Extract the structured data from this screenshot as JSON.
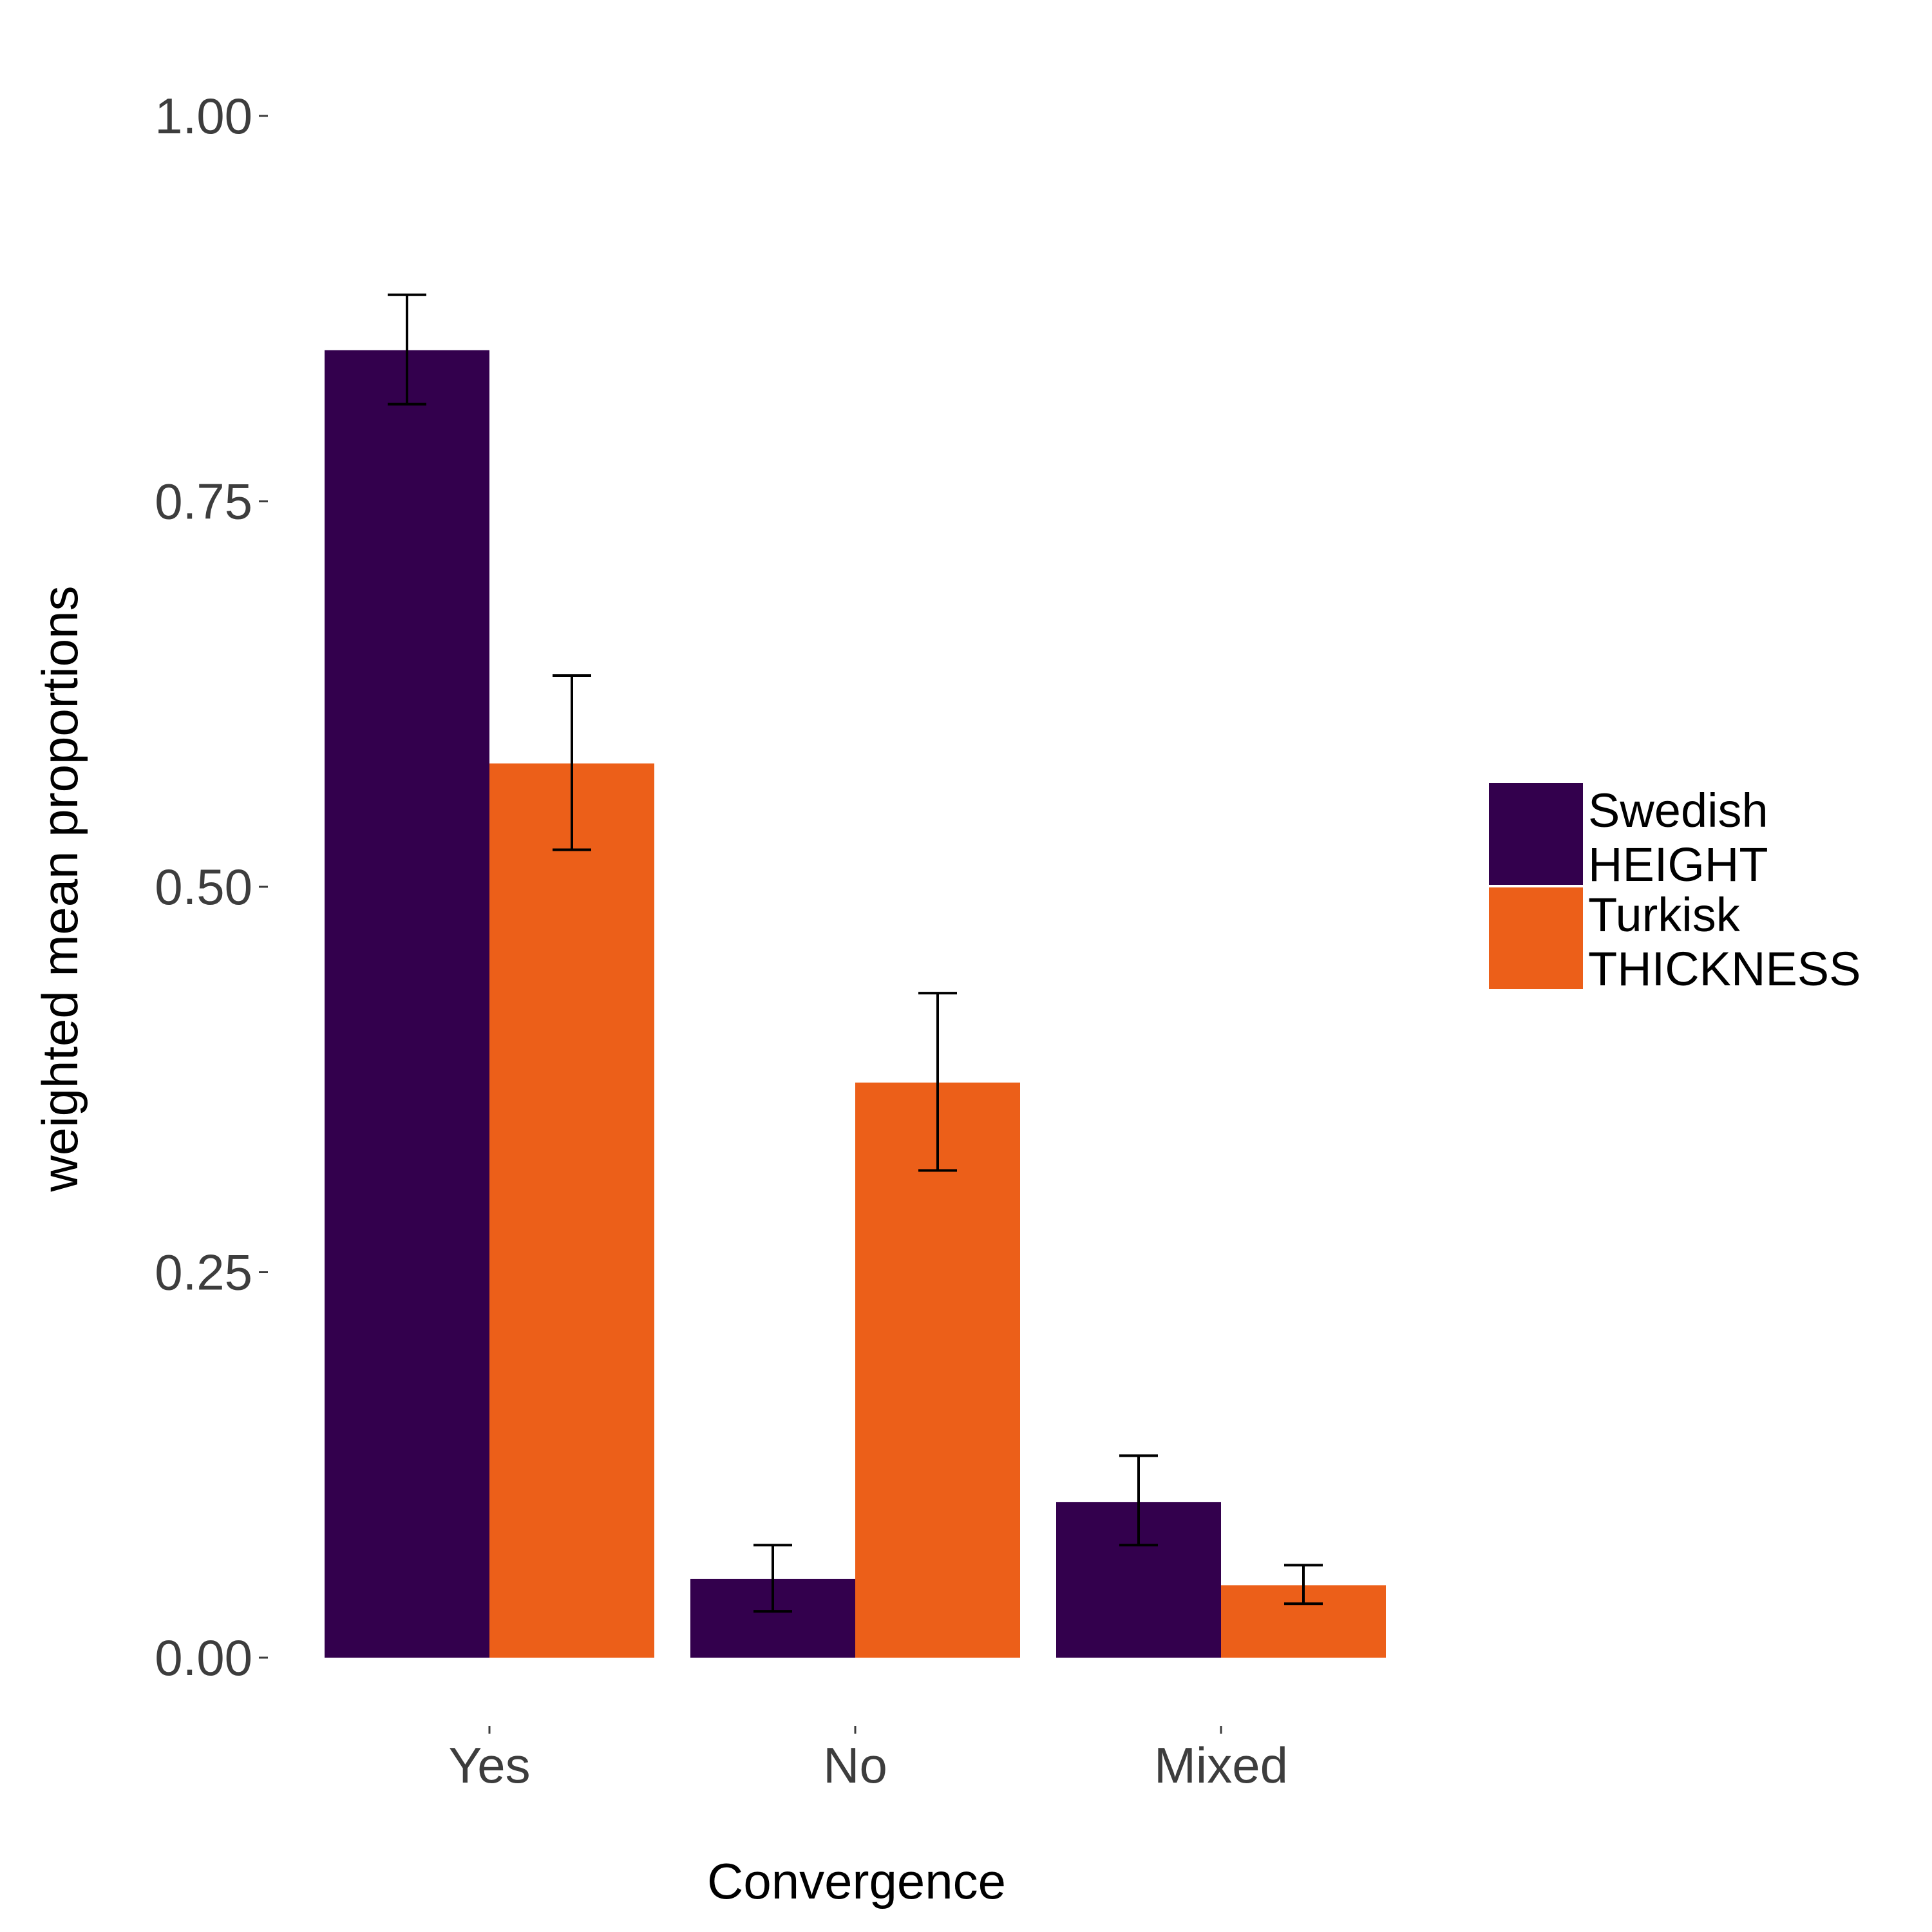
{
  "chart_data": {
    "type": "bar",
    "title": "",
    "xlabel": "Convergence",
    "ylabel": "weighted mean proportions",
    "categories": [
      "Yes",
      "No",
      "Mixed"
    ],
    "ylim": [
      0,
      1
    ],
    "yticks": [
      0,
      0.25,
      0.5,
      0.75,
      1
    ],
    "ytick_labels": [
      "0.00",
      "0.25",
      "0.50",
      "0.75",
      "1.00"
    ],
    "grid": false,
    "legend_position": "right",
    "series": [
      {
        "name": "Swedish HEIGHT",
        "legend_lines": [
          "Swedish",
          "HEIGHT"
        ],
        "color": "#33004d",
        "values": [
          0.848,
          0.051,
          0.101
        ],
        "error_low": [
          0.813,
          0.03,
          0.073
        ],
        "error_high": [
          0.884,
          0.073,
          0.131
        ]
      },
      {
        "name": "Turkisk THICKNESS",
        "legend_lines": [
          "Turkisk",
          "THICKNESS"
        ],
        "color": "#ec5f19",
        "values": [
          0.58,
          0.373,
          0.047
        ],
        "error_low": [
          0.524,
          0.316,
          0.035
        ],
        "error_high": [
          0.637,
          0.431,
          0.06
        ]
      }
    ]
  }
}
